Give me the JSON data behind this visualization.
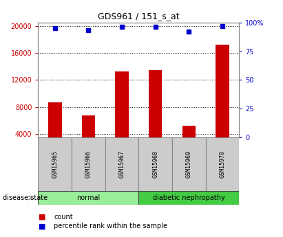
{
  "title": "GDS961 / 151_s_at",
  "samples": [
    "GSM15965",
    "GSM15966",
    "GSM15967",
    "GSM15968",
    "GSM15969",
    "GSM15970"
  ],
  "counts": [
    8700,
    6800,
    13300,
    13500,
    5200,
    17200
  ],
  "percentiles": [
    95,
    93,
    96,
    96,
    92,
    97
  ],
  "bar_color": "#cc0000",
  "marker_color": "#0000cc",
  "left_ylim": [
    3500,
    20500
  ],
  "left_yticks": [
    4000,
    8000,
    12000,
    16000,
    20000
  ],
  "right_ylim": [
    0,
    100
  ],
  "right_yticks": [
    0,
    25,
    50,
    75,
    100
  ],
  "right_yticklabels": [
    "0",
    "25",
    "50",
    "75",
    "100%"
  ],
  "left_tick_color": "#cc0000",
  "right_tick_color": "#0000cc",
  "grid_color": "#000000",
  "disease_groups": [
    {
      "label": "normal",
      "samples": 3,
      "color": "#99ee99"
    },
    {
      "label": "diabetic nephropathy",
      "samples": 3,
      "color": "#44cc44"
    }
  ],
  "disease_state_label": "disease state",
  "legend_count_label": "count",
  "legend_percentile_label": "percentile rank within the sample",
  "bg_color": "#ffffff",
  "sample_box_bg": "#cccccc",
  "bar_width": 0.4,
  "bar_bottom": 3500
}
